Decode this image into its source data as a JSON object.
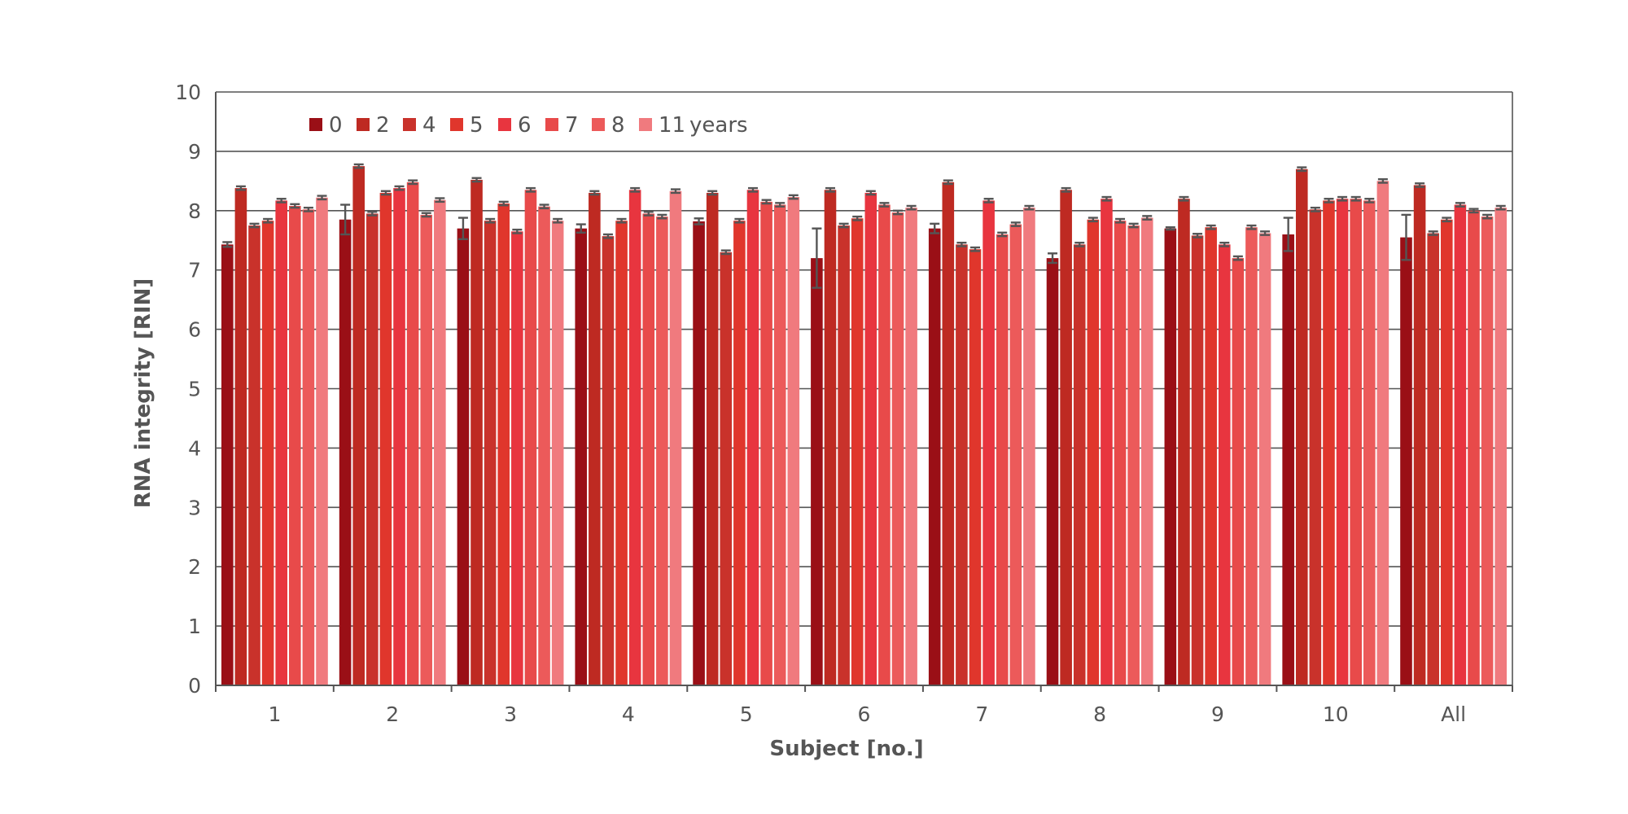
{
  "chart_data": {
    "type": "bar",
    "title": "",
    "xlabel": "Subject [no.]",
    "ylabel": "RNA integrity [RIN]",
    "ylim": [
      0,
      10
    ],
    "yticks": [
      0,
      1,
      2,
      3,
      4,
      5,
      6,
      7,
      8,
      9,
      10
    ],
    "grid": true,
    "legend_position": "top-left",
    "legend_suffix": "years",
    "categories": [
      "1",
      "2",
      "3",
      "4",
      "5",
      "6",
      "7",
      "8",
      "9",
      "10",
      "All"
    ],
    "series": [
      {
        "name": "0",
        "color": "#9a0f16",
        "values": [
          7.43,
          7.85,
          7.7,
          7.7,
          7.82,
          7.2,
          7.7,
          7.2,
          7.7,
          7.6,
          7.55
        ],
        "errors": [
          0.04,
          0.25,
          0.18,
          0.07,
          0.05,
          0.5,
          0.08,
          0.08,
          0.02,
          0.28,
          0.38
        ]
      },
      {
        "name": "2",
        "color": "#be2a22",
        "values": [
          8.38,
          8.75,
          8.52,
          8.3,
          8.3,
          8.35,
          8.48,
          8.35,
          8.2,
          8.7,
          8.43
        ]
      },
      {
        "name": "4",
        "color": "#c9322b",
        "values": [
          7.75,
          7.95,
          7.83,
          7.57,
          7.3,
          7.75,
          7.43,
          7.43,
          7.58,
          8.02,
          7.62
        ]
      },
      {
        "name": "5",
        "color": "#e0362c",
        "values": [
          7.83,
          8.3,
          8.12,
          7.83,
          7.83,
          7.87,
          7.35,
          7.85,
          7.72,
          8.17,
          7.85
        ]
      },
      {
        "name": "6",
        "color": "#e8353f",
        "values": [
          8.17,
          8.38,
          7.65,
          8.35,
          8.35,
          8.3,
          8.17,
          8.2,
          7.43,
          8.2,
          8.1
        ]
      },
      {
        "name": "7",
        "color": "#e84a4a",
        "values": [
          8.08,
          8.48,
          8.35,
          7.95,
          8.15,
          8.1,
          7.6,
          7.83,
          7.2,
          8.2,
          8.0
        ]
      },
      {
        "name": "8",
        "color": "#ec5a5a",
        "values": [
          8.02,
          7.93,
          8.07,
          7.9,
          8.1,
          7.97,
          7.77,
          7.75,
          7.72,
          8.17,
          7.9
        ]
      },
      {
        "name": "11",
        "color": "#f07a7e",
        "values": [
          8.22,
          8.18,
          7.83,
          8.33,
          8.23,
          8.05,
          8.05,
          7.88,
          7.62,
          8.5,
          8.05
        ]
      }
    ]
  }
}
